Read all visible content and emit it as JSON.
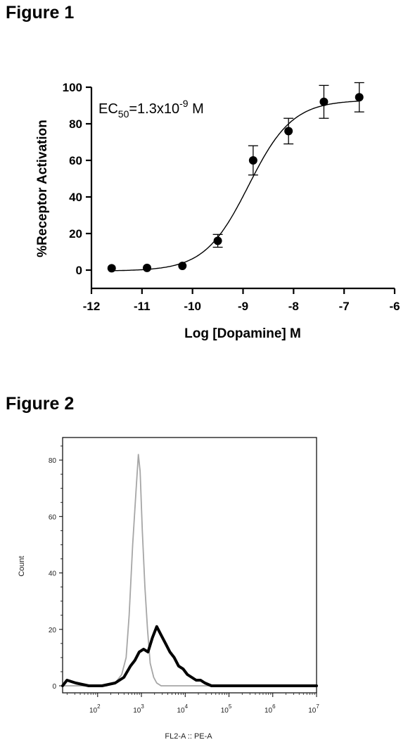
{
  "figures": {
    "fig1_title": "Figure 1",
    "fig2_title": "Figure 2"
  },
  "chart_data": [
    {
      "type": "scatter",
      "title": "",
      "xlabel": "Log [Dopamine] M",
      "ylabel": "%Receptor Activation",
      "xlim": [
        -12,
        -6
      ],
      "ylim": [
        -10,
        100
      ],
      "xticks": [
        "-12",
        "-11",
        "-10",
        "-9",
        "-8",
        "-7",
        "-6"
      ],
      "yticks": [
        "0",
        "20",
        "40",
        "60",
        "80",
        "100"
      ],
      "annotation": {
        "prefix": "EC",
        "sub": "50",
        "mid": "=1.3x10",
        "sup": "-9",
        "suffix": " M"
      },
      "points": [
        {
          "x": -11.6,
          "y": 1.0,
          "err": 0
        },
        {
          "x": -10.9,
          "y": 1.2,
          "err": 0
        },
        {
          "x": -10.2,
          "y": 2.3,
          "err": 0
        },
        {
          "x": -9.5,
          "y": 16.0,
          "err": 3.5
        },
        {
          "x": -8.8,
          "y": 60.0,
          "err": 8.0
        },
        {
          "x": -8.1,
          "y": 76.0,
          "err": 7.0
        },
        {
          "x": -7.4,
          "y": 92.0,
          "err": 9.0
        },
        {
          "x": -6.7,
          "y": 94.5,
          "err": 8.0
        }
      ],
      "fit": {
        "bottom": -0.5,
        "top": 93.0,
        "logEC50": -8.89,
        "hill": 1.0
      }
    },
    {
      "type": "area",
      "title": "",
      "xlabel": "FL2-A :: PE-A",
      "ylabel": "Count",
      "ylim": [
        0,
        88
      ],
      "log_x": true,
      "yticks": [
        "0",
        "20",
        "40",
        "60",
        "80"
      ],
      "xticks": [
        {
          "base": "10",
          "exp": "2",
          "v": 2
        },
        {
          "base": "10",
          "exp": "3",
          "v": 3
        },
        {
          "base": "10",
          "exp": "4",
          "v": 4
        },
        {
          "base": "10",
          "exp": "5",
          "v": 5
        },
        {
          "base": "10",
          "exp": "6",
          "v": 6
        },
        {
          "base": "10",
          "exp": "7",
          "v": 7
        }
      ],
      "series": [
        {
          "color": "#a6a6a6",
          "points": [
            [
              1.2,
              0
            ],
            [
              2.2,
              0
            ],
            [
              2.4,
              1
            ],
            [
              2.55,
              4
            ],
            [
              2.65,
              10
            ],
            [
              2.72,
              25
            ],
            [
              2.8,
              50
            ],
            [
              2.88,
              70
            ],
            [
              2.93,
              82
            ],
            [
              2.97,
              76
            ],
            [
              3.02,
              55
            ],
            [
              3.08,
              35
            ],
            [
              3.14,
              20
            ],
            [
              3.2,
              8
            ],
            [
              3.28,
              3
            ],
            [
              3.35,
              1
            ],
            [
              3.45,
              0
            ],
            [
              7.0,
              0
            ]
          ]
        },
        {
          "color": "#000000",
          "points": [
            [
              1.2,
              0
            ],
            [
              1.3,
              2
            ],
            [
              1.5,
              1
            ],
            [
              1.8,
              0
            ],
            [
              2.1,
              0
            ],
            [
              2.4,
              1
            ],
            [
              2.6,
              3
            ],
            [
              2.75,
              7
            ],
            [
              2.85,
              9
            ],
            [
              2.95,
              12
            ],
            [
              3.05,
              13
            ],
            [
              3.15,
              12
            ],
            [
              3.25,
              17
            ],
            [
              3.35,
              21
            ],
            [
              3.45,
              18
            ],
            [
              3.55,
              15
            ],
            [
              3.65,
              12
            ],
            [
              3.75,
              10
            ],
            [
              3.85,
              7
            ],
            [
              3.95,
              6
            ],
            [
              4.05,
              4
            ],
            [
              4.15,
              3
            ],
            [
              4.25,
              2
            ],
            [
              4.35,
              2
            ],
            [
              4.45,
              1
            ],
            [
              4.6,
              0
            ],
            [
              5.0,
              0
            ],
            [
              5.5,
              0
            ],
            [
              7.0,
              0
            ]
          ]
        }
      ]
    }
  ]
}
